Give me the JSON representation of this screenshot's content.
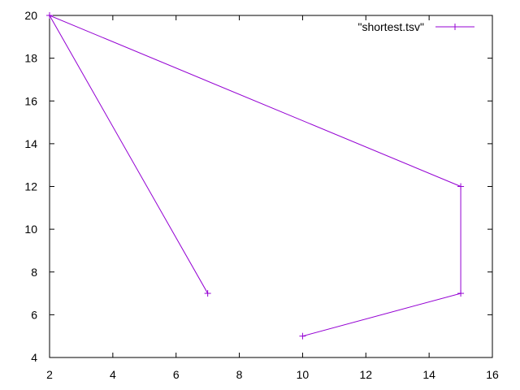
{
  "chart_data": {
    "type": "line",
    "title": "",
    "xlabel": "",
    "ylabel": "",
    "xlim": [
      2,
      16
    ],
    "ylim": [
      4,
      20
    ],
    "x_ticks": [
      2,
      4,
      6,
      8,
      10,
      12,
      14,
      16
    ],
    "y_ticks": [
      4,
      6,
      8,
      10,
      12,
      14,
      16,
      18,
      20
    ],
    "grid": false,
    "legend_position": "top-right",
    "series": [
      {
        "name": "\"shortest.tsv\"",
        "color": "#9400d3",
        "marker": "plus",
        "points": [
          {
            "x": 10,
            "y": 5
          },
          {
            "x": 15,
            "y": 7
          },
          {
            "x": 15,
            "y": 12
          },
          {
            "x": 2,
            "y": 20
          },
          {
            "x": 7,
            "y": 7
          }
        ]
      }
    ]
  }
}
